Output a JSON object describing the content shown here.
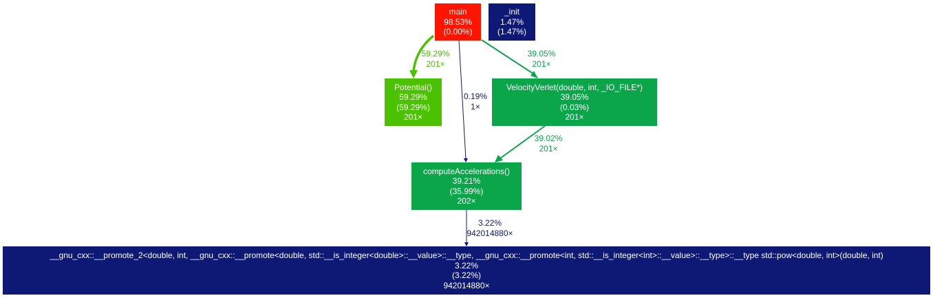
{
  "colors": {
    "red": "#fd1500",
    "navy": "#0d1974",
    "lime": "#4ac200",
    "green": "#0ba54a",
    "text_white": "#ffffff"
  },
  "nodes": {
    "main": {
      "name": "main",
      "total": "98.53%",
      "self": "(0.00%)"
    },
    "init": {
      "name": "_init",
      "total": "1.47%",
      "self": "(1.47%)"
    },
    "potential": {
      "name": "Potential()",
      "total": "59.29%",
      "self": "(59.29%)",
      "calls": "201×"
    },
    "verlet": {
      "name": "VelocityVerlet(double, int, _IO_FILE*)",
      "total": "39.05%",
      "self": "(0.03%)",
      "calls": "201×"
    },
    "accel": {
      "name": "computeAccelerations()",
      "total": "39.21%",
      "self": "(35.99%)",
      "calls": "202×"
    },
    "pow": {
      "name": "__gnu_cxx::__promote_2<double, int, __gnu_cxx::__promote<double, std::__is_integer<double>::__value>::__type, __gnu_cxx::__promote<int, std::__is_integer<int>::__value>::__type>::__type std::pow<double, int>(double, int)",
      "total": "3.22%",
      "self": "(3.22%)",
      "calls": "942014880×"
    }
  },
  "edges": {
    "main_potential": {
      "pct": "59.29%",
      "calls": "201×"
    },
    "main_accel": {
      "pct": "0.19%",
      "calls": "1×"
    },
    "main_verlet": {
      "pct": "39.05%",
      "calls": "201×"
    },
    "verlet_accel": {
      "pct": "39.02%",
      "calls": "201×"
    },
    "accel_pow": {
      "pct": "3.22%",
      "calls": "942014880×"
    }
  }
}
